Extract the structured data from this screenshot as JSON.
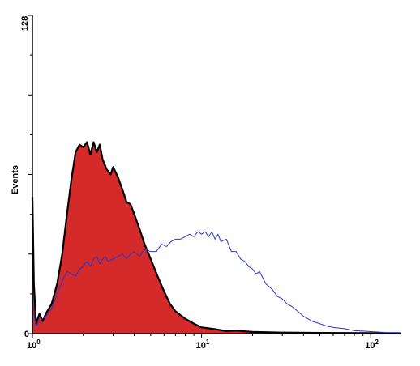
{
  "chart_data": {
    "type": "area",
    "title": "",
    "xlabel": "",
    "ylabel": "Events",
    "x_scale": "log",
    "xlim": [
      1,
      150
    ],
    "ylim": [
      0,
      128
    ],
    "grid": false,
    "legend": "none",
    "x_ticks": [
      {
        "value": 1,
        "base": "10",
        "exp": "0"
      },
      {
        "value": 10,
        "base": "10",
        "exp": "1"
      },
      {
        "value": 100,
        "base": "10",
        "exp": "2"
      }
    ],
    "y_ticks": [
      {
        "value": 0,
        "label": "0"
      },
      {
        "value": 128,
        "label": "128"
      }
    ],
    "series": [
      {
        "color": "#d42a2a",
        "stroke": "#000000",
        "fill": true,
        "points": [
          [
            1.0,
            55
          ],
          [
            1.02,
            20
          ],
          [
            1.05,
            4
          ],
          [
            1.1,
            8
          ],
          [
            1.15,
            5
          ],
          [
            1.2,
            8
          ],
          [
            1.3,
            12
          ],
          [
            1.4,
            20
          ],
          [
            1.5,
            32
          ],
          [
            1.6,
            48
          ],
          [
            1.7,
            62
          ],
          [
            1.8,
            73
          ],
          [
            1.9,
            76
          ],
          [
            2.0,
            75
          ],
          [
            2.1,
            77
          ],
          [
            2.2,
            72
          ],
          [
            2.3,
            77
          ],
          [
            2.4,
            73
          ],
          [
            2.5,
            76
          ],
          [
            2.6,
            70
          ],
          [
            2.75,
            66
          ],
          [
            2.9,
            64
          ],
          [
            3.0,
            67
          ],
          [
            3.2,
            63
          ],
          [
            3.4,
            58
          ],
          [
            3.6,
            53
          ],
          [
            3.8,
            52
          ],
          [
            4.0,
            48
          ],
          [
            4.3,
            42
          ],
          [
            4.6,
            36
          ],
          [
            5.0,
            30
          ],
          [
            5.5,
            23
          ],
          [
            6.0,
            17
          ],
          [
            6.5,
            12
          ],
          [
            7.0,
            9
          ],
          [
            8.0,
            6
          ],
          [
            9.0,
            4
          ],
          [
            10.0,
            2.5
          ],
          [
            12.0,
            1.8
          ],
          [
            14.0,
            1
          ],
          [
            16.0,
            1.2
          ],
          [
            20.0,
            0.7
          ],
          [
            30.0,
            0.4
          ],
          [
            50.0,
            0.3
          ],
          [
            100.0,
            0.2
          ],
          [
            150.0,
            0.1
          ]
        ]
      },
      {
        "color": "#2a35c8",
        "stroke": "#2a35c8",
        "fill": false,
        "points": [
          [
            1.0,
            18
          ],
          [
            1.02,
            8
          ],
          [
            1.05,
            3
          ],
          [
            1.1,
            5
          ],
          [
            1.2,
            7
          ],
          [
            1.3,
            10
          ],
          [
            1.4,
            16
          ],
          [
            1.5,
            21
          ],
          [
            1.6,
            25
          ],
          [
            1.7,
            24
          ],
          [
            1.8,
            23
          ],
          [
            1.9,
            26
          ],
          [
            2.0,
            27
          ],
          [
            2.1,
            29
          ],
          [
            2.2,
            27
          ],
          [
            2.3,
            30
          ],
          [
            2.4,
            31
          ],
          [
            2.5,
            28
          ],
          [
            2.6,
            30
          ],
          [
            2.7,
            31
          ],
          [
            2.8,
            29
          ],
          [
            3.0,
            30
          ],
          [
            3.2,
            31
          ],
          [
            3.4,
            32
          ],
          [
            3.6,
            30
          ],
          [
            3.8,
            32
          ],
          [
            4.0,
            33
          ],
          [
            4.3,
            31
          ],
          [
            4.6,
            34
          ],
          [
            5.0,
            33
          ],
          [
            5.4,
            33
          ],
          [
            5.8,
            36
          ],
          [
            6.2,
            35
          ],
          [
            6.6,
            37
          ],
          [
            7.0,
            38
          ],
          [
            7.5,
            38
          ],
          [
            8.0,
            39
          ],
          [
            8.5,
            40
          ],
          [
            9.0,
            39
          ],
          [
            9.5,
            41
          ],
          [
            10.0,
            40
          ],
          [
            10.5,
            41
          ],
          [
            11.0,
            39
          ],
          [
            11.5,
            41
          ],
          [
            12.0,
            38
          ],
          [
            12.5,
            40
          ],
          [
            13.0,
            37
          ],
          [
            14.0,
            38
          ],
          [
            15.0,
            33
          ],
          [
            16.0,
            33
          ],
          [
            17.0,
            30
          ],
          [
            18.0,
            29
          ],
          [
            19.0,
            27
          ],
          [
            20.0,
            26
          ],
          [
            21.0,
            24
          ],
          [
            22.0,
            25
          ],
          [
            24.0,
            20
          ],
          [
            26.0,
            18
          ],
          [
            28.0,
            15
          ],
          [
            30.0,
            14
          ],
          [
            32.0,
            12
          ],
          [
            34.0,
            11
          ],
          [
            37.0,
            9
          ],
          [
            40.0,
            7
          ],
          [
            45.0,
            5
          ],
          [
            50.0,
            4
          ],
          [
            55.0,
            3
          ],
          [
            60.0,
            2.5
          ],
          [
            70.0,
            2
          ],
          [
            80.0,
            1.2
          ],
          [
            90.0,
            1
          ],
          [
            100.0,
            0.8
          ],
          [
            120.0,
            0.5
          ],
          [
            150.0,
            0.4
          ]
        ]
      }
    ]
  }
}
